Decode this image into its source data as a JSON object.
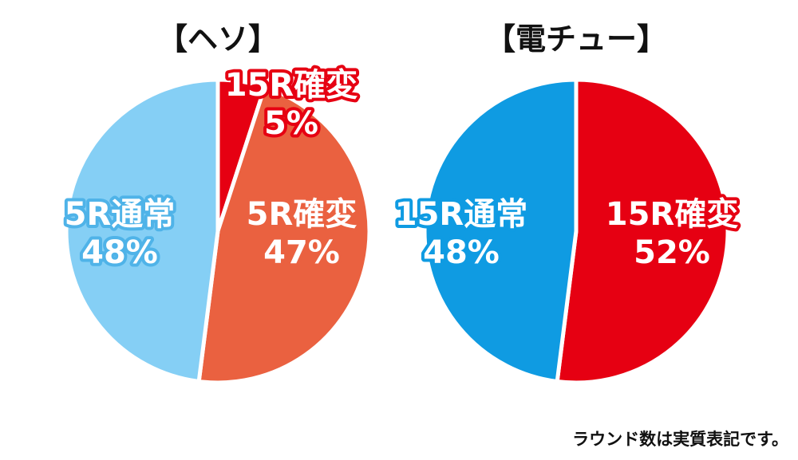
{
  "chart_data": [
    {
      "type": "pie",
      "title": "【ヘソ】",
      "slices": [
        {
          "name": "15R確変",
          "percent": "5%",
          "value": 5,
          "color": "#e60012",
          "label_outline": "#e60012"
        },
        {
          "name": "5R確変",
          "percent": "47%",
          "value": 47,
          "color": "#ea6140",
          "label_outline": "#ea6140"
        },
        {
          "name": "5R通常",
          "percent": "48%",
          "value": 48,
          "color": "#85cff5",
          "label_outline": "#4fb3e8"
        }
      ]
    },
    {
      "type": "pie",
      "title": "【電チュー】",
      "slices": [
        {
          "name": "15R確変",
          "percent": "52%",
          "value": 52,
          "color": "#e60012",
          "label_outline": "#e60012"
        },
        {
          "name": "15R通常",
          "percent": "48%",
          "value": 48,
          "color": "#0f9be2",
          "label_outline": "#0f9be2"
        }
      ]
    }
  ],
  "footnote": "ラウンド数は実質表記です。"
}
